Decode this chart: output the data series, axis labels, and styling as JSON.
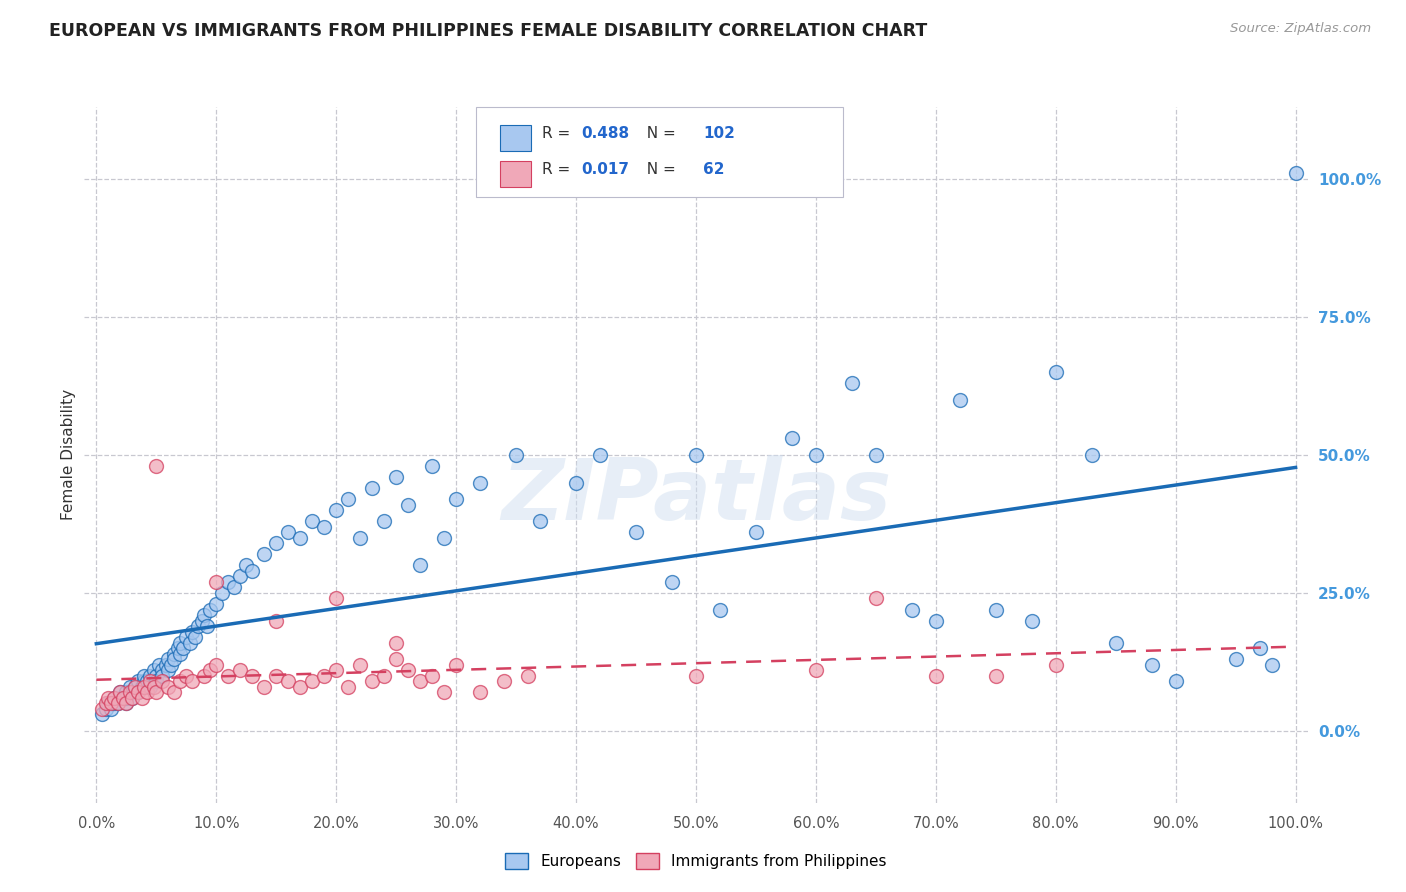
{
  "title": "EUROPEAN VS IMMIGRANTS FROM PHILIPPINES FEMALE DISABILITY CORRELATION CHART",
  "source": "Source: ZipAtlas.com",
  "ylabel": "Female Disability",
  "watermark": "ZIPatlas",
  "blue_R": 0.488,
  "blue_N": 102,
  "pink_R": 0.017,
  "pink_N": 62,
  "blue_color": "#a8c8f0",
  "pink_color": "#f0a8b8",
  "line_blue": "#1a6bb5",
  "line_pink": "#d44060",
  "title_color": "#222222",
  "value_color": "#2266cc",
  "background_color": "#ffffff",
  "grid_color": "#c8c8d0",
  "right_tick_color": "#4499dd",
  "blue_x": [
    0.005,
    0.008,
    0.01,
    0.012,
    0.015,
    0.015,
    0.018,
    0.02,
    0.02,
    0.022,
    0.025,
    0.025,
    0.025,
    0.028,
    0.03,
    0.03,
    0.032,
    0.035,
    0.035,
    0.038,
    0.04,
    0.04,
    0.042,
    0.045,
    0.045,
    0.048,
    0.05,
    0.05,
    0.052,
    0.055,
    0.055,
    0.058,
    0.06,
    0.06,
    0.062,
    0.065,
    0.065,
    0.068,
    0.07,
    0.07,
    0.072,
    0.075,
    0.078,
    0.08,
    0.082,
    0.085,
    0.088,
    0.09,
    0.092,
    0.095,
    0.1,
    0.105,
    0.11,
    0.115,
    0.12,
    0.125,
    0.13,
    0.14,
    0.15,
    0.16,
    0.17,
    0.18,
    0.19,
    0.2,
    0.21,
    0.22,
    0.23,
    0.24,
    0.25,
    0.26,
    0.27,
    0.28,
    0.29,
    0.3,
    0.32,
    0.35,
    0.37,
    0.4,
    0.42,
    0.45,
    0.48,
    0.5,
    0.52,
    0.55,
    0.58,
    0.6,
    0.63,
    0.65,
    0.68,
    0.7,
    0.72,
    0.75,
    0.78,
    0.8,
    0.83,
    0.85,
    0.88,
    0.9,
    0.95,
    0.97,
    0.98,
    1.0
  ],
  "blue_y": [
    0.03,
    0.04,
    0.05,
    0.04,
    0.05,
    0.06,
    0.05,
    0.06,
    0.07,
    0.06,
    0.05,
    0.07,
    0.06,
    0.08,
    0.07,
    0.06,
    0.08,
    0.07,
    0.09,
    0.08,
    0.09,
    0.1,
    0.09,
    0.1,
    0.08,
    0.11,
    0.1,
    0.09,
    0.12,
    0.11,
    0.1,
    0.12,
    0.11,
    0.13,
    0.12,
    0.14,
    0.13,
    0.15,
    0.14,
    0.16,
    0.15,
    0.17,
    0.16,
    0.18,
    0.17,
    0.19,
    0.2,
    0.21,
    0.19,
    0.22,
    0.23,
    0.25,
    0.27,
    0.26,
    0.28,
    0.3,
    0.29,
    0.32,
    0.34,
    0.36,
    0.35,
    0.38,
    0.37,
    0.4,
    0.42,
    0.35,
    0.44,
    0.38,
    0.46,
    0.41,
    0.3,
    0.48,
    0.35,
    0.42,
    0.45,
    0.5,
    0.38,
    0.45,
    0.5,
    0.36,
    0.27,
    0.5,
    0.22,
    0.36,
    0.53,
    0.5,
    0.63,
    0.5,
    0.22,
    0.2,
    0.6,
    0.22,
    0.2,
    0.65,
    0.5,
    0.16,
    0.12,
    0.09,
    0.13,
    0.15,
    0.12,
    1.01
  ],
  "pink_x": [
    0.005,
    0.008,
    0.01,
    0.012,
    0.015,
    0.018,
    0.02,
    0.022,
    0.025,
    0.028,
    0.03,
    0.032,
    0.035,
    0.038,
    0.04,
    0.042,
    0.045,
    0.048,
    0.05,
    0.055,
    0.06,
    0.065,
    0.07,
    0.075,
    0.08,
    0.09,
    0.095,
    0.1,
    0.11,
    0.12,
    0.13,
    0.14,
    0.15,
    0.16,
    0.17,
    0.18,
    0.19,
    0.2,
    0.21,
    0.22,
    0.23,
    0.24,
    0.25,
    0.26,
    0.27,
    0.28,
    0.29,
    0.3,
    0.32,
    0.34,
    0.36,
    0.5,
    0.6,
    0.65,
    0.7,
    0.75,
    0.8,
    0.05,
    0.1,
    0.15,
    0.2,
    0.25
  ],
  "pink_y": [
    0.04,
    0.05,
    0.06,
    0.05,
    0.06,
    0.05,
    0.07,
    0.06,
    0.05,
    0.07,
    0.06,
    0.08,
    0.07,
    0.06,
    0.08,
    0.07,
    0.09,
    0.08,
    0.07,
    0.09,
    0.08,
    0.07,
    0.09,
    0.1,
    0.09,
    0.1,
    0.11,
    0.12,
    0.1,
    0.11,
    0.1,
    0.08,
    0.1,
    0.09,
    0.08,
    0.09,
    0.1,
    0.11,
    0.08,
    0.12,
    0.09,
    0.1,
    0.13,
    0.11,
    0.09,
    0.1,
    0.07,
    0.12,
    0.07,
    0.09,
    0.1,
    0.1,
    0.11,
    0.24,
    0.1,
    0.1,
    0.12,
    0.48,
    0.27,
    0.2,
    0.24,
    0.16
  ]
}
